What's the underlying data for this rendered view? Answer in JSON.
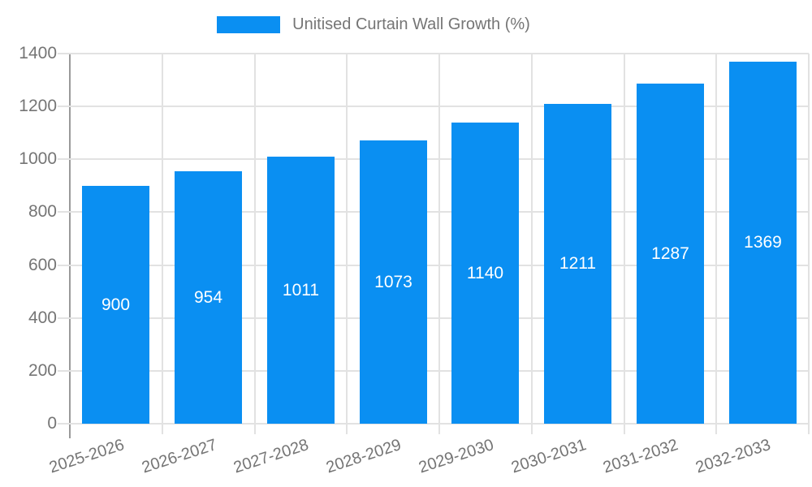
{
  "chart_data": {
    "type": "bar",
    "title": "",
    "legend": {
      "position": "top",
      "label": "Unitised Curtain Wall Growth (%)"
    },
    "categories": [
      "2025-2026",
      "2026-2027",
      "2027-2028",
      "2028-2029",
      "2029-2030",
      "2030-2031",
      "2031-2032",
      "2032-2033"
    ],
    "series": [
      {
        "name": "Unitised Curtain Wall Growth (%)",
        "values": [
          900,
          954,
          1011,
          1073,
          1140,
          1211,
          1287,
          1369
        ]
      }
    ],
    "value_labels": [
      "900",
      "954",
      "1011",
      "1073",
      "1140",
      "1211",
      "1287",
      "1369"
    ],
    "xlabel": "",
    "ylabel": "",
    "ylim": [
      0,
      1400
    ],
    "yticks": [
      0,
      200,
      400,
      600,
      800,
      1000,
      1200,
      1400
    ],
    "grid": true,
    "colors": {
      "bar": "#0a8ff2",
      "grid": "#e2e2e2",
      "axis": "#9a9a9a",
      "tick_text": "#757575",
      "value_text": "#ffffff",
      "background": "#ffffff"
    }
  }
}
